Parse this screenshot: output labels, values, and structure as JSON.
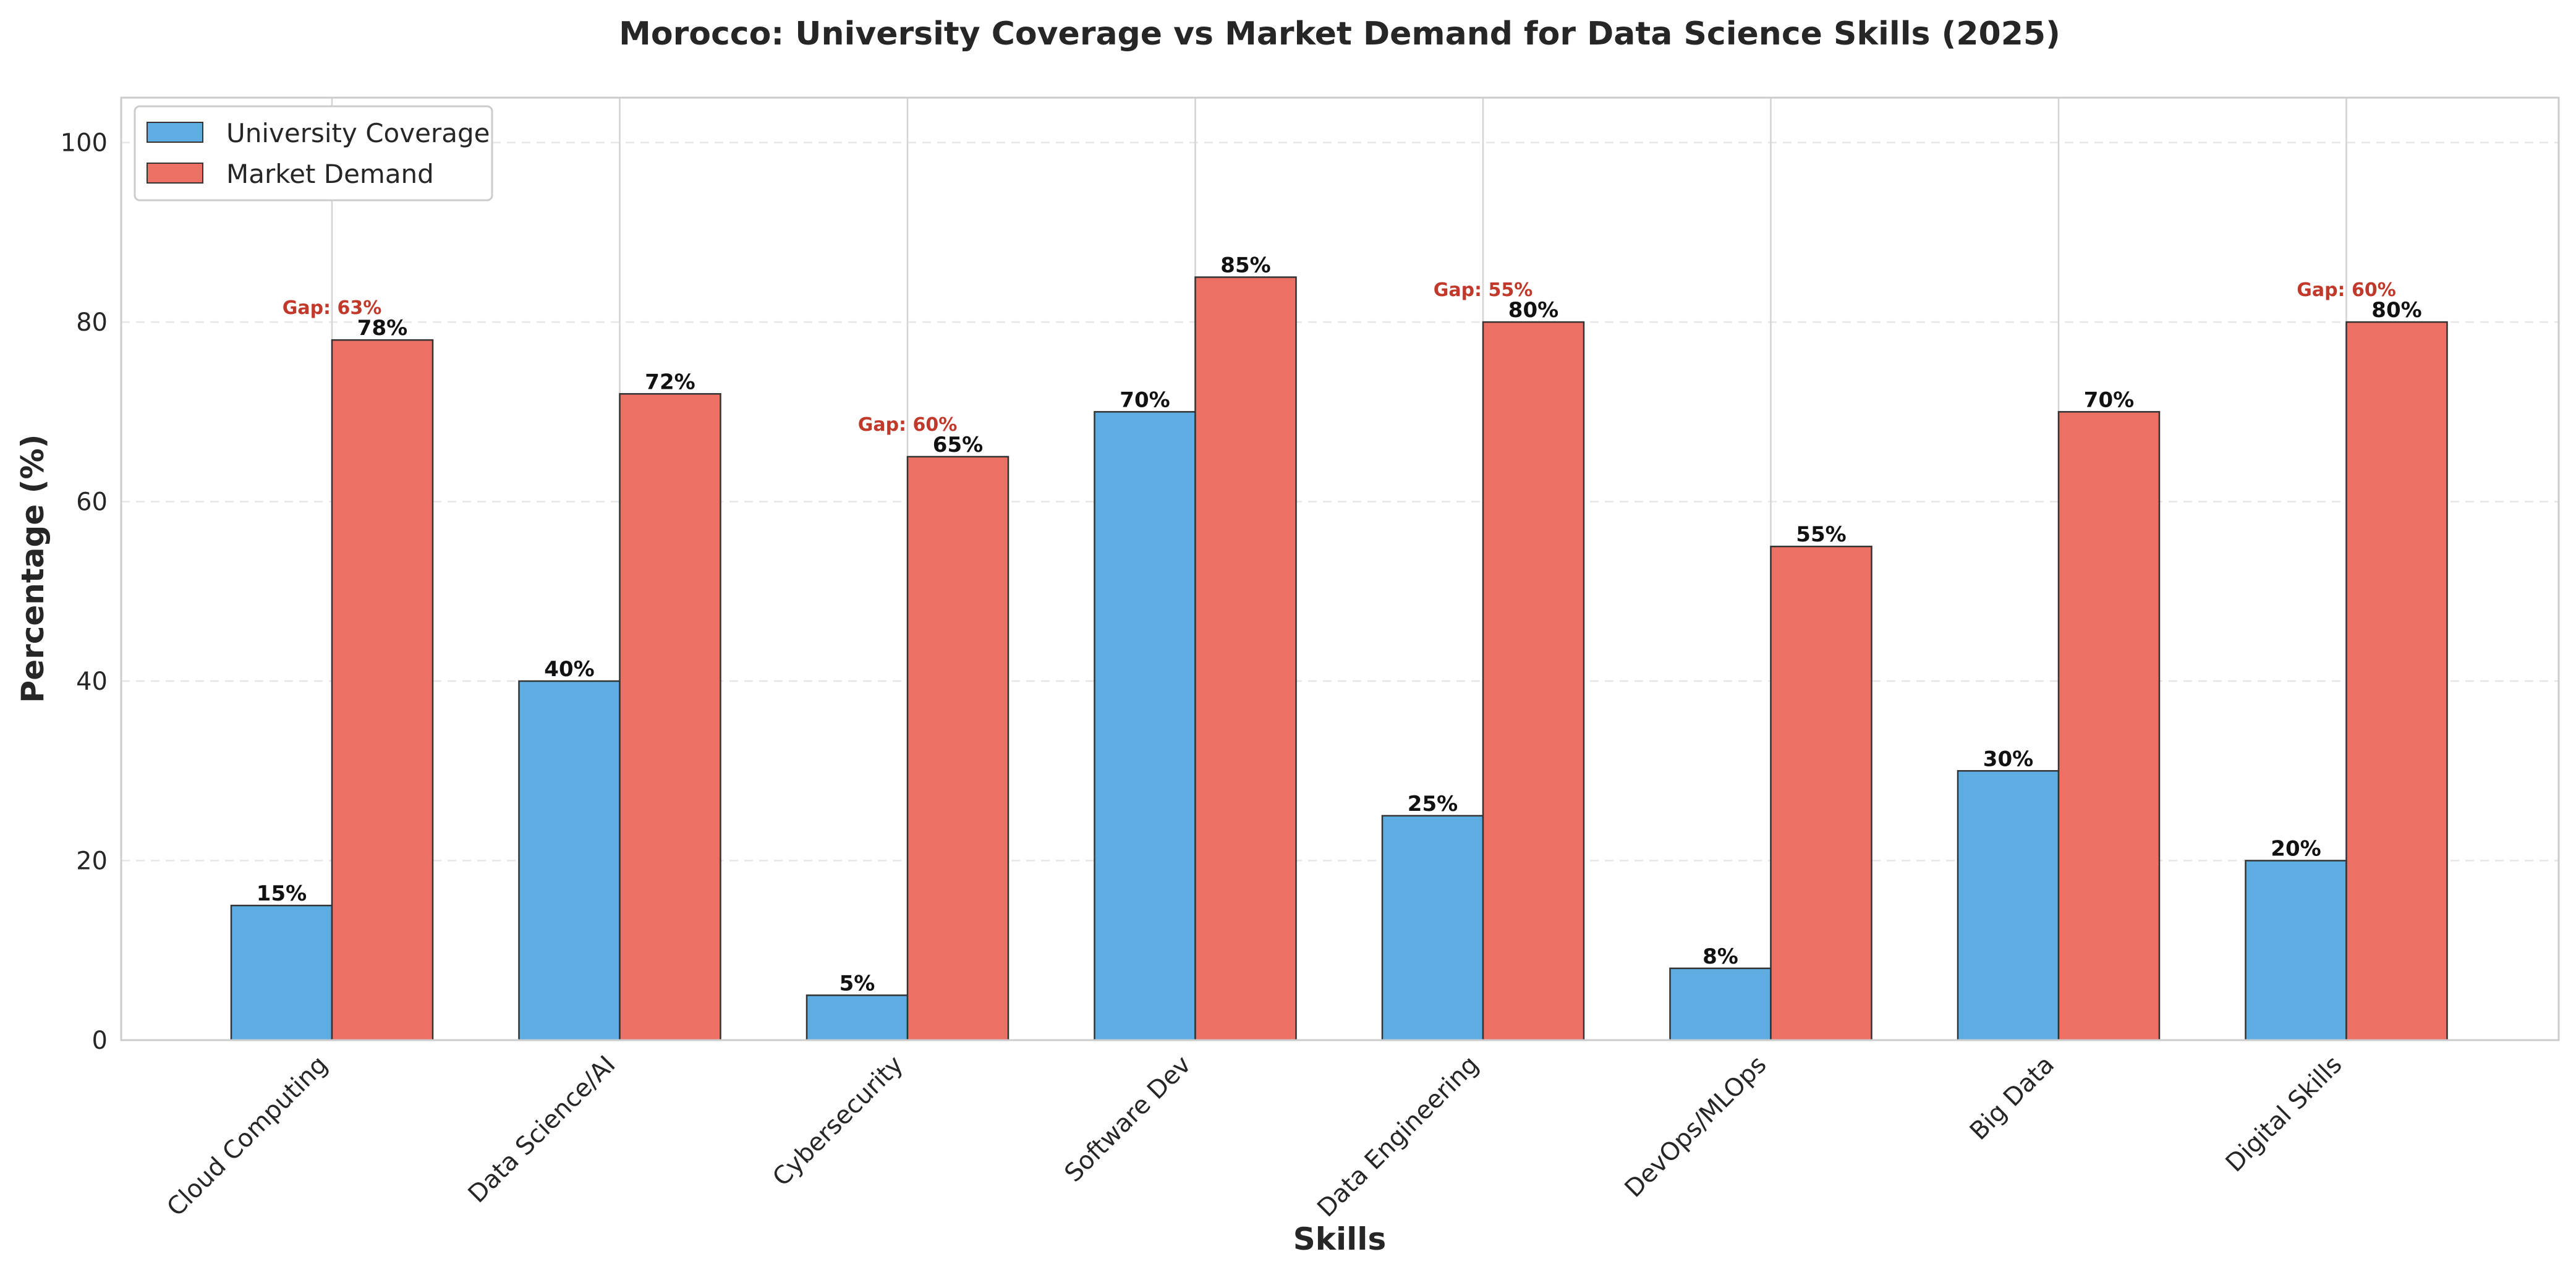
{
  "chart_data": {
    "type": "bar",
    "title": "Morocco: University Coverage vs Market Demand for Data Science Skills (2025)",
    "xlabel": "Skills",
    "ylabel": "Percentage (%)",
    "ylim": [
      0,
      105
    ],
    "yticks": [
      "0",
      "20",
      "40",
      "60",
      "80",
      "100"
    ],
    "grid": true,
    "legend_position": "top-left",
    "categories": [
      "Cloud Computing",
      "Data Science/AI",
      "Cybersecurity",
      "Software Dev",
      "Data Engineering",
      "DevOps/MLOps",
      "Big Data",
      "Digital Skills"
    ],
    "series": [
      {
        "name": "University Coverage",
        "color": "#5DADE2",
        "values": [
          15,
          40,
          5,
          70,
          25,
          8,
          30,
          20
        ],
        "labels": [
          "15%",
          "40%",
          "5%",
          "70%",
          "25%",
          "8%",
          "30%",
          "20%"
        ]
      },
      {
        "name": "Market Demand",
        "color": "#EC7063",
        "values": [
          78,
          72,
          65,
          85,
          80,
          55,
          70,
          80
        ],
        "labels": [
          "78%",
          "72%",
          "65%",
          "85%",
          "80%",
          "55%",
          "70%",
          "80%"
        ]
      }
    ],
    "gap_annotations": [
      {
        "category": "Cloud Computing",
        "text": "Gap: 63%"
      },
      {
        "category": "Cybersecurity",
        "text": "Gap: 60%"
      },
      {
        "category": "Data Engineering",
        "text": "Gap: 55%"
      },
      {
        "category": "Digital Skills",
        "text": "Gap: 60%"
      }
    ],
    "annotation_color": "#C0392B"
  }
}
